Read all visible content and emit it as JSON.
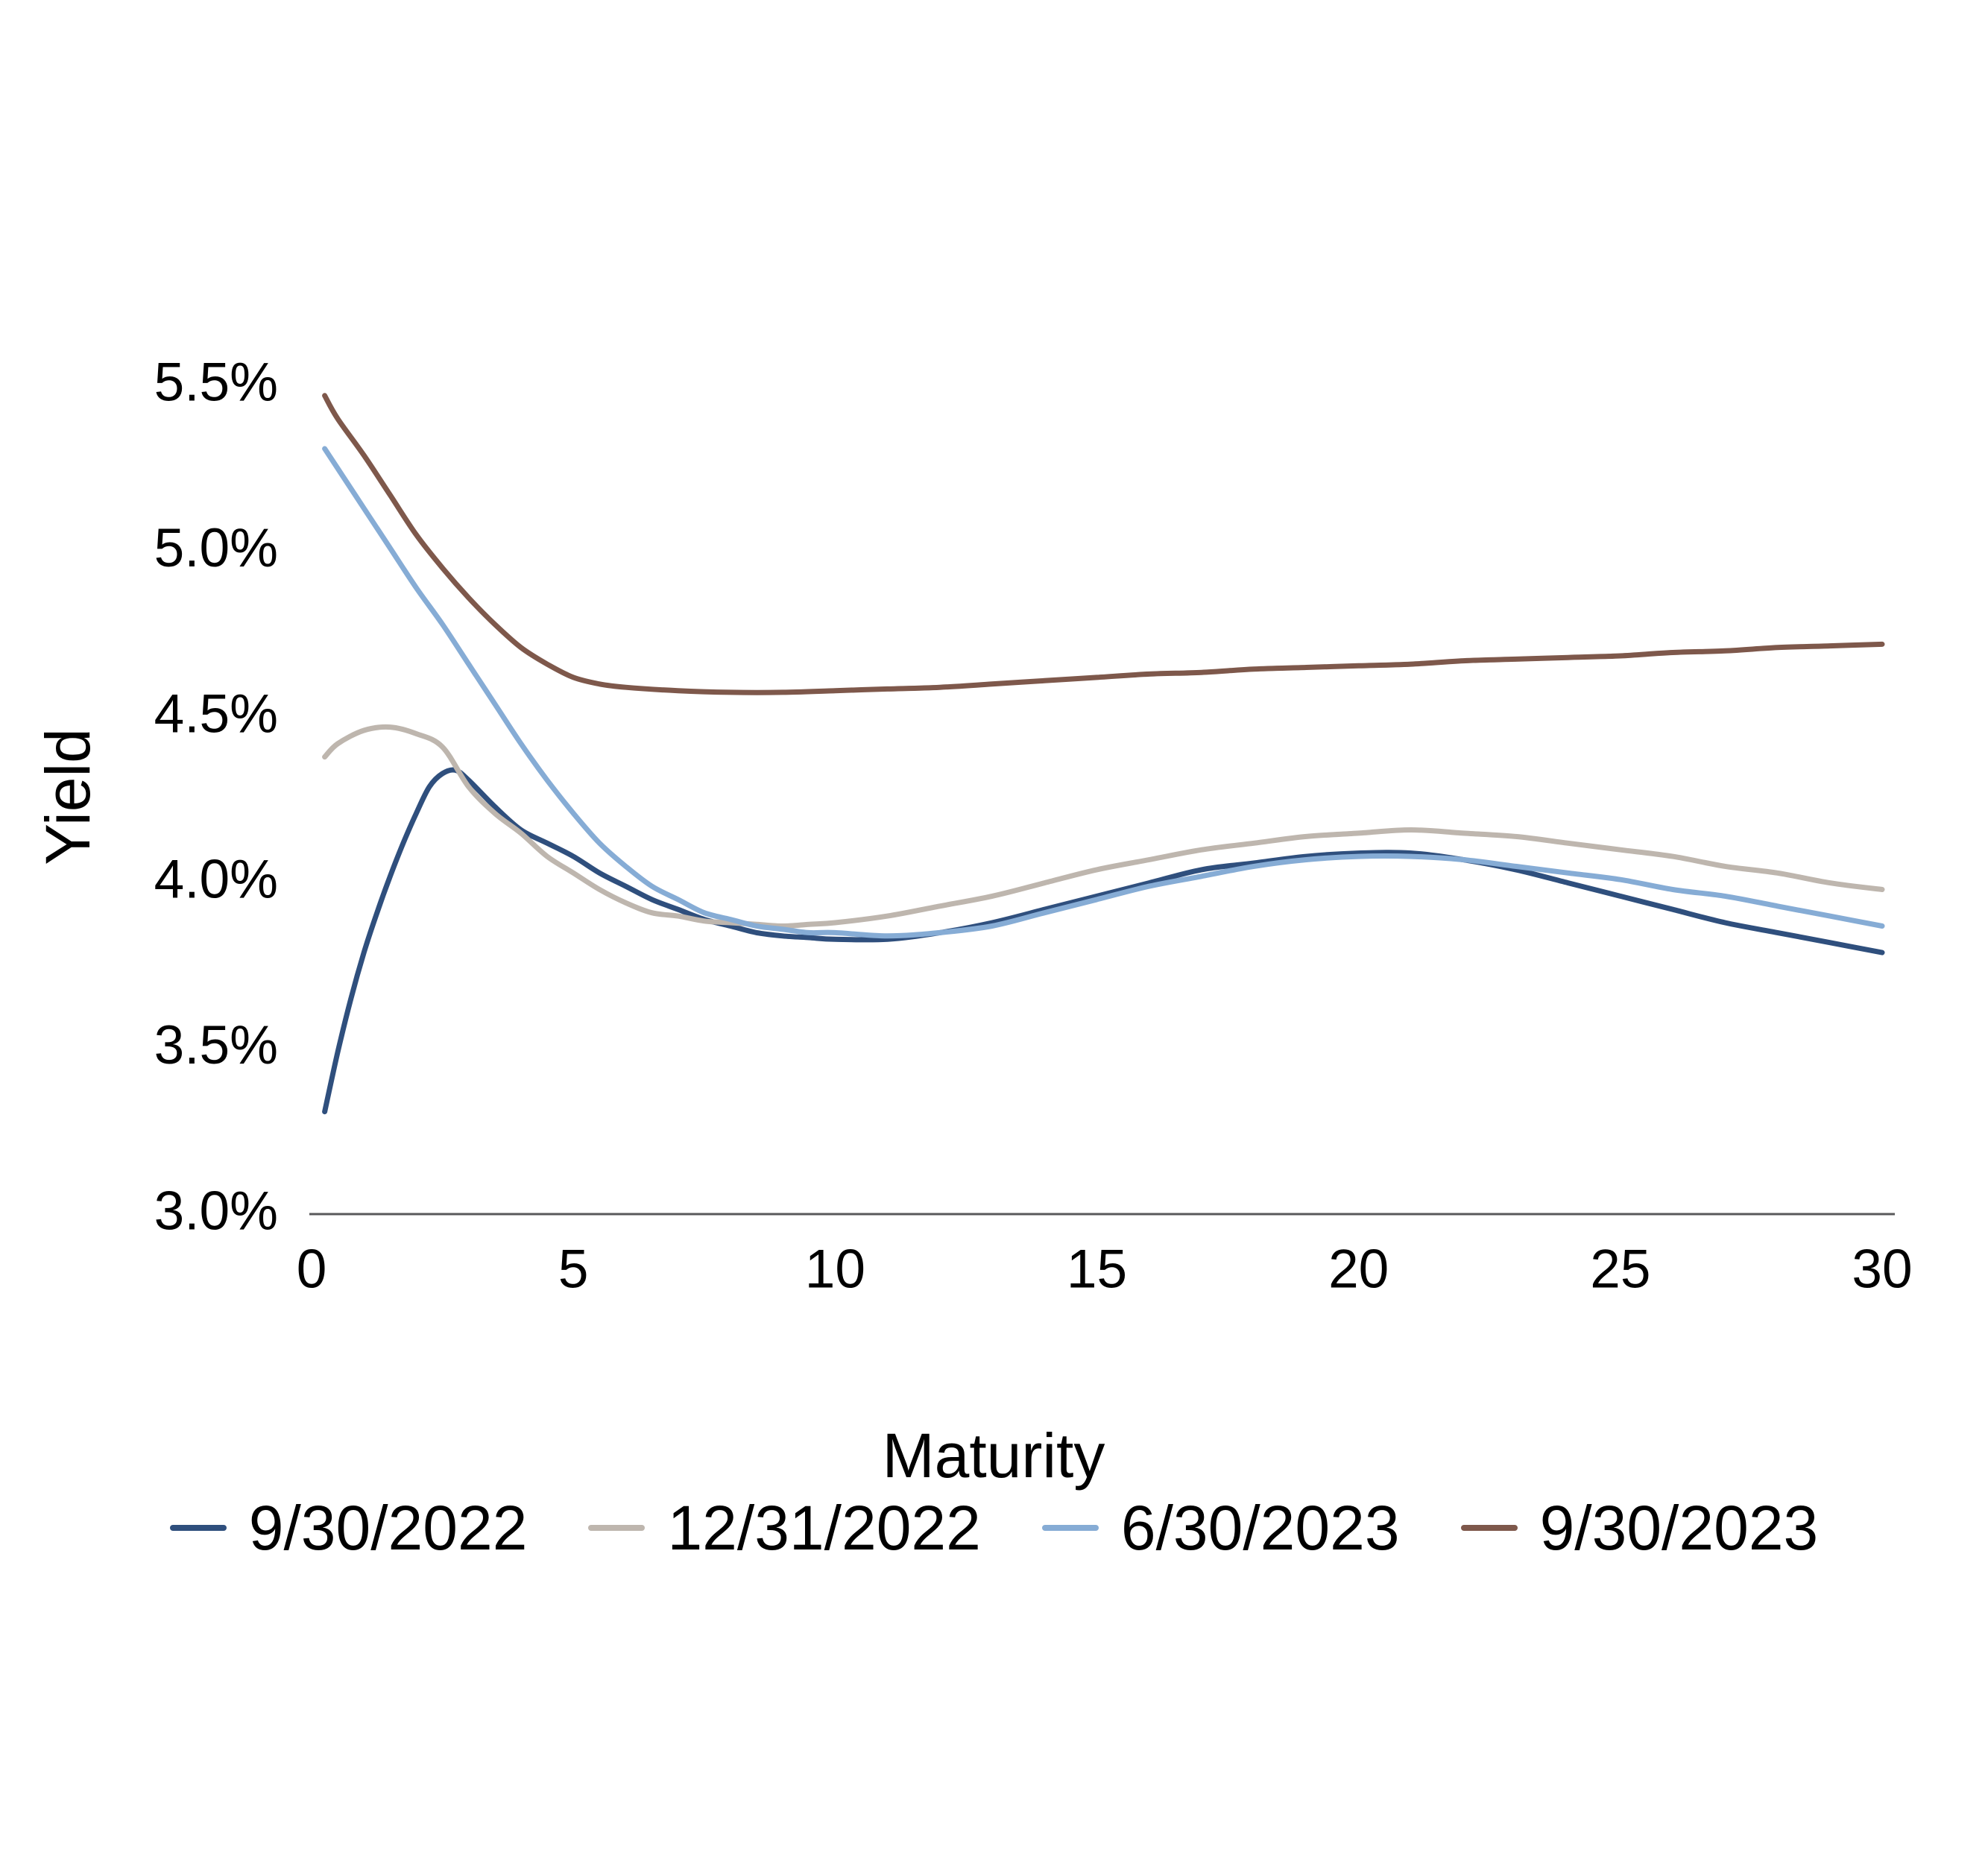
{
  "chart_data": {
    "type": "line",
    "title": "",
    "xlabel": "Maturity",
    "ylabel": "Yield",
    "xlim": [
      0,
      30
    ],
    "ylim": [
      3.0,
      5.5
    ],
    "grid": false,
    "legend_position": "bottom",
    "axis_color": "#58585A",
    "text_color": "#000000",
    "background_color": "#ffffff",
    "x_ticks": [
      {
        "value": 0,
        "label": "0"
      },
      {
        "value": 5,
        "label": "5"
      },
      {
        "value": 10,
        "label": "10"
      },
      {
        "value": 15,
        "label": "15"
      },
      {
        "value": 20,
        "label": "20"
      },
      {
        "value": 25,
        "label": "25"
      },
      {
        "value": 30,
        "label": "30"
      }
    ],
    "y_ticks": [
      {
        "value": 5.5,
        "label": "5.5%"
      },
      {
        "value": 5.0,
        "label": "5.0%"
      },
      {
        "value": 4.5,
        "label": "4.5%"
      },
      {
        "value": 4.0,
        "label": "4.0%"
      },
      {
        "value": 3.5,
        "label": "3.5%"
      },
      {
        "value": 3.0,
        "label": "3.0%"
      }
    ],
    "series": [
      {
        "name": "9/30/2022",
        "color": "#2F4F7D",
        "points": [
          [
            0.25,
            3.3
          ],
          [
            0.5,
            3.48
          ],
          [
            0.75,
            3.64
          ],
          [
            1,
            3.78
          ],
          [
            1.25,
            3.9
          ],
          [
            1.5,
            4.01
          ],
          [
            1.75,
            4.11
          ],
          [
            2,
            4.2
          ],
          [
            2.25,
            4.28
          ],
          [
            2.5,
            4.32
          ],
          [
            2.75,
            4.33
          ],
          [
            3,
            4.3
          ],
          [
            3.5,
            4.22
          ],
          [
            4,
            4.15
          ],
          [
            4.5,
            4.11
          ],
          [
            5,
            4.07
          ],
          [
            5.5,
            4.02
          ],
          [
            6,
            3.98
          ],
          [
            6.5,
            3.94
          ],
          [
            7,
            3.91
          ],
          [
            7.5,
            3.88
          ],
          [
            8,
            3.86
          ],
          [
            8.5,
            3.84
          ],
          [
            9,
            3.83
          ],
          [
            9.5,
            3.825
          ],
          [
            10,
            3.82
          ],
          [
            11,
            3.82
          ],
          [
            12,
            3.84
          ],
          [
            13,
            3.87
          ],
          [
            14,
            3.91
          ],
          [
            15,
            3.95
          ],
          [
            16,
            3.99
          ],
          [
            17,
            4.03
          ],
          [
            18,
            4.05
          ],
          [
            19,
            4.07
          ],
          [
            20,
            4.08
          ],
          [
            21,
            4.08
          ],
          [
            22,
            4.06
          ],
          [
            23,
            4.03
          ],
          [
            24,
            3.99
          ],
          [
            25,
            3.95
          ],
          [
            26,
            3.91
          ],
          [
            27,
            3.87
          ],
          [
            28,
            3.84
          ],
          [
            29,
            3.81
          ],
          [
            30,
            3.78
          ]
        ]
      },
      {
        "name": "12/31/2022",
        "color": "#BEB6AE",
        "points": [
          [
            0.25,
            4.37
          ],
          [
            0.5,
            4.41
          ],
          [
            1,
            4.45
          ],
          [
            1.5,
            4.46
          ],
          [
            2,
            4.44
          ],
          [
            2.5,
            4.4
          ],
          [
            3,
            4.28
          ],
          [
            3.5,
            4.2
          ],
          [
            4,
            4.14
          ],
          [
            4.5,
            4.07
          ],
          [
            5,
            4.02
          ],
          [
            5.5,
            3.97
          ],
          [
            6,
            3.93
          ],
          [
            6.5,
            3.9
          ],
          [
            7,
            3.89
          ],
          [
            7.5,
            3.875
          ],
          [
            8,
            3.87
          ],
          [
            8.5,
            3.865
          ],
          [
            9,
            3.86
          ],
          [
            9.5,
            3.865
          ],
          [
            10,
            3.87
          ],
          [
            11,
            3.89
          ],
          [
            12,
            3.92
          ],
          [
            13,
            3.95
          ],
          [
            14,
            3.99
          ],
          [
            15,
            4.03
          ],
          [
            16,
            4.06
          ],
          [
            17,
            4.09
          ],
          [
            18,
            4.11
          ],
          [
            19,
            4.13
          ],
          [
            20,
            4.14
          ],
          [
            21,
            4.15
          ],
          [
            22,
            4.14
          ],
          [
            23,
            4.13
          ],
          [
            24,
            4.11
          ],
          [
            25,
            4.09
          ],
          [
            26,
            4.07
          ],
          [
            27,
            4.04
          ],
          [
            28,
            4.02
          ],
          [
            29,
            3.99
          ],
          [
            30,
            3.97
          ]
        ]
      },
      {
        "name": "6/30/2023",
        "color": "#86ACD5",
        "points": [
          [
            0.25,
            5.3
          ],
          [
            0.5,
            5.24
          ],
          [
            1,
            5.12
          ],
          [
            1.5,
            5.0
          ],
          [
            2,
            4.88
          ],
          [
            2.5,
            4.77
          ],
          [
            3,
            4.65
          ],
          [
            3.5,
            4.53
          ],
          [
            4,
            4.41
          ],
          [
            4.5,
            4.3
          ],
          [
            5,
            4.2
          ],
          [
            5.5,
            4.11
          ],
          [
            6,
            4.04
          ],
          [
            6.5,
            3.98
          ],
          [
            7,
            3.94
          ],
          [
            7.5,
            3.9
          ],
          [
            8,
            3.88
          ],
          [
            8.5,
            3.86
          ],
          [
            9,
            3.85
          ],
          [
            9.5,
            3.84
          ],
          [
            10,
            3.84
          ],
          [
            11,
            3.83
          ],
          [
            12,
            3.84
          ],
          [
            13,
            3.86
          ],
          [
            14,
            3.9
          ],
          [
            15,
            3.94
          ],
          [
            16,
            3.98
          ],
          [
            17,
            4.01
          ],
          [
            18,
            4.04
          ],
          [
            19,
            4.06
          ],
          [
            20,
            4.07
          ],
          [
            21,
            4.07
          ],
          [
            22,
            4.06
          ],
          [
            23,
            4.04
          ],
          [
            24,
            4.02
          ],
          [
            25,
            4.0
          ],
          [
            26,
            3.97
          ],
          [
            27,
            3.95
          ],
          [
            28,
            3.92
          ],
          [
            29,
            3.89
          ],
          [
            30,
            3.86
          ]
        ]
      },
      {
        "name": "9/30/2023",
        "color": "#7E584B",
        "points": [
          [
            0.25,
            5.46
          ],
          [
            0.5,
            5.39
          ],
          [
            1,
            5.28
          ],
          [
            1.5,
            5.16
          ],
          [
            2,
            5.04
          ],
          [
            2.5,
            4.94
          ],
          [
            3,
            4.85
          ],
          [
            3.5,
            4.77
          ],
          [
            4,
            4.7
          ],
          [
            4.5,
            4.65
          ],
          [
            5,
            4.61
          ],
          [
            5.5,
            4.59
          ],
          [
            6,
            4.58
          ],
          [
            7,
            4.57
          ],
          [
            8,
            4.565
          ],
          [
            9,
            4.565
          ],
          [
            10,
            4.57
          ],
          [
            11,
            4.575
          ],
          [
            12,
            4.58
          ],
          [
            13,
            4.59
          ],
          [
            14,
            4.6
          ],
          [
            15,
            4.61
          ],
          [
            16,
            4.62
          ],
          [
            17,
            4.625
          ],
          [
            18,
            4.635
          ],
          [
            19,
            4.64
          ],
          [
            20,
            4.645
          ],
          [
            21,
            4.65
          ],
          [
            22,
            4.66
          ],
          [
            23,
            4.665
          ],
          [
            24,
            4.67
          ],
          [
            25,
            4.675
          ],
          [
            26,
            4.685
          ],
          [
            27,
            4.69
          ],
          [
            28,
            4.7
          ],
          [
            29,
            4.705
          ],
          [
            30,
            4.71
          ]
        ]
      }
    ]
  }
}
